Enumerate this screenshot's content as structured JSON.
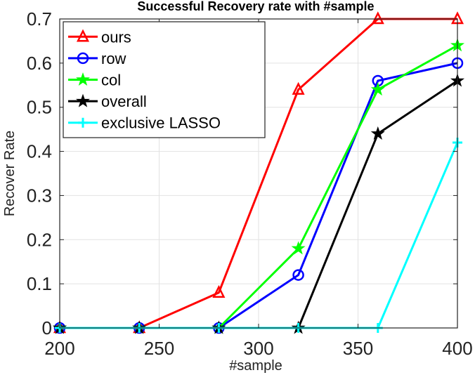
{
  "chart_data": {
    "type": "line",
    "title": "Successful Recovery rate with #sample",
    "xlabel": "#sample",
    "ylabel": "Recover Rate",
    "x": [
      200,
      240,
      280,
      320,
      360,
      400
    ],
    "xlim": [
      200,
      400
    ],
    "ylim": [
      0,
      0.7
    ],
    "x_ticks": [
      200,
      250,
      300,
      350,
      400
    ],
    "x_tick_labels": [
      "200",
      "250",
      "300",
      "350",
      "400"
    ],
    "y_ticks": [
      0,
      0.1,
      0.2,
      0.3,
      0.4,
      0.5,
      0.6,
      0.7
    ],
    "y_tick_labels": [
      "0",
      "0.1",
      "0.2",
      "0.3",
      "0.4",
      "0.5",
      "0.6",
      "0.7"
    ],
    "grid": true,
    "legend_position": "top-left",
    "series": [
      {
        "name": "ours",
        "color": "#ff0000",
        "marker": "triangle",
        "values": [
          0,
          0,
          0.08,
          0.54,
          0.7,
          0.7
        ]
      },
      {
        "name": "row",
        "color": "#0000ff",
        "marker": "circle",
        "values": [
          0,
          0,
          0,
          0.12,
          0.56,
          0.6
        ]
      },
      {
        "name": "col",
        "color": "#00ff00",
        "marker": "star",
        "values": [
          0,
          0,
          0,
          0.18,
          0.54,
          0.64
        ]
      },
      {
        "name": "overall",
        "color": "#000000",
        "marker": "star",
        "values": [
          0,
          0,
          0,
          0,
          0.44,
          0.56
        ]
      },
      {
        "name": "exclusive LASSO",
        "color": "#00ffff",
        "marker": "plus",
        "values": [
          0,
          0,
          0,
          0,
          0,
          0.42
        ]
      }
    ]
  }
}
